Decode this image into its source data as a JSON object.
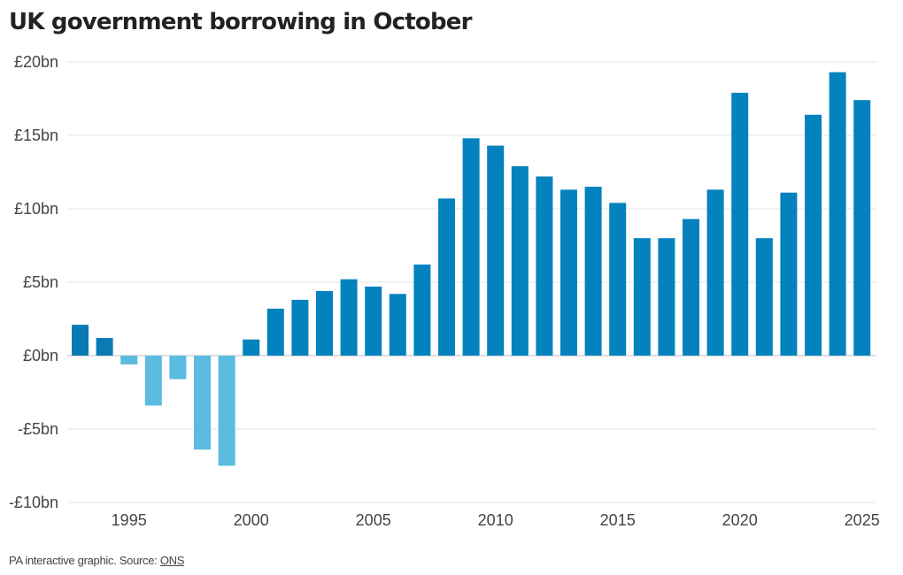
{
  "chart_data": {
    "type": "bar",
    "title": "UK government borrowing in October",
    "xlabel": "",
    "ylabel": "",
    "x": [
      1993,
      1994,
      1995,
      1996,
      1997,
      1998,
      1999,
      2000,
      2001,
      2002,
      2003,
      2004,
      2005,
      2006,
      2007,
      2008,
      2009,
      2010,
      2011,
      2012,
      2013,
      2014,
      2015,
      2016,
      2017,
      2018,
      2019,
      2020,
      2021,
      2022,
      2023,
      2024,
      2025
    ],
    "values": [
      2.1,
      1.2,
      -0.6,
      -3.4,
      -1.6,
      -6.4,
      -7.5,
      1.1,
      3.2,
      3.8,
      4.4,
      5.2,
      4.7,
      4.2,
      6.2,
      10.7,
      14.8,
      14.3,
      12.9,
      12.2,
      11.3,
      11.5,
      10.4,
      8.0,
      8.0,
      9.3,
      11.3,
      17.9,
      8.0,
      11.1,
      16.4,
      19.3,
      17.4
    ],
    "ylim": [
      -10,
      20
    ],
    "y_ticks": [
      20,
      15,
      10,
      5,
      0,
      -5,
      -10
    ],
    "y_tick_labels": [
      "£20bn",
      "£15bn",
      "£10bn",
      "£5bn",
      "£0bn",
      "-£5bn",
      "-£10bn"
    ],
    "x_ticks": [
      1995,
      2000,
      2005,
      2010,
      2015,
      2020,
      2025
    ],
    "x_tick_labels": [
      "1995",
      "2000",
      "2005",
      "2010",
      "2015",
      "2020",
      "2025"
    ],
    "grid": "horizontal",
    "colors": {
      "positive_dark": "#0a7ab5",
      "positive": "#0382bd",
      "negative": "#5bbbe0",
      "gridline": "#e6e6e6",
      "zero_line": "#bdbdbd",
      "tick_text": "#444444"
    }
  },
  "footer": {
    "text": "PA interactive graphic. Source: ",
    "source_link": "ONS"
  }
}
